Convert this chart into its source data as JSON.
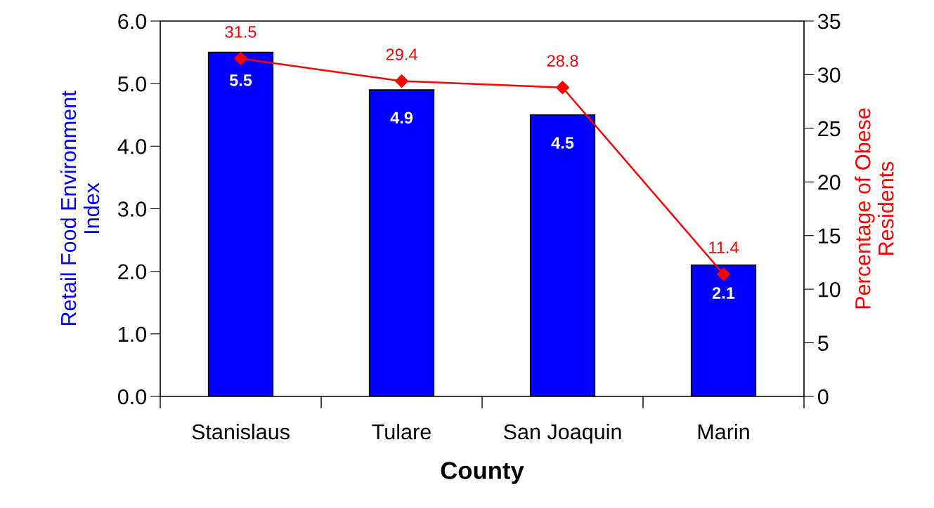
{
  "chart_data": {
    "type": "bar",
    "xlabel": "County",
    "ylabel": "Retail Food Environment\nIndex",
    "y2label": "Percentage of Obese\nResidents",
    "categories": [
      "Stanislaus",
      "Tulare",
      "San Joaquin",
      "Marin"
    ],
    "series": [
      {
        "color": "#0000ff",
        "values": [
          5.5,
          4.9,
          4.5,
          2.1
        ]
      },
      {
        "type": "line",
        "axis": "y2",
        "color": "#ff0000",
        "marker": "diamond",
        "values": [
          31.5,
          29.4,
          28.8,
          11.4
        ]
      }
    ],
    "ylim": [
      0,
      6
    ],
    "yticks": [
      {
        "value": 0,
        "label": "0.0"
      },
      {
        "value": 1,
        "label": "1.0"
      },
      {
        "value": 2,
        "label": "2.0"
      },
      {
        "value": 3,
        "label": "3.0"
      },
      {
        "value": 4,
        "label": "4.0"
      },
      {
        "value": 5,
        "label": "5.0"
      },
      {
        "value": 6,
        "label": "6.0"
      }
    ],
    "y2lim": [
      0,
      35
    ],
    "y2ticks": [
      0,
      5,
      10,
      15,
      20,
      25,
      30,
      35
    ],
    "data_labels": true,
    "grid": false,
    "legend": false
  }
}
